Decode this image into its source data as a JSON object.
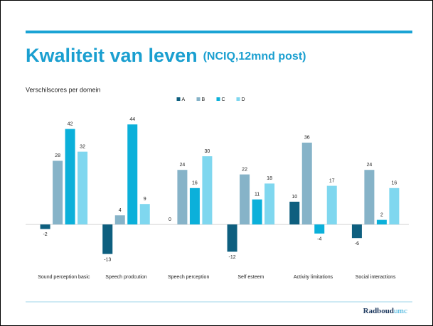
{
  "title": "Kwaliteit van leven",
  "title_suffix": "(NCIQ,12mnd post)",
  "logo": {
    "part1": "Radboud",
    "part2": "umc"
  },
  "chart_data": {
    "type": "bar",
    "subtitle": "Verschilscores per domein",
    "categories": [
      "Sound perception basic",
      "Speech prodcution",
      "Speech perception",
      "Self esteem",
      "Activity limitations",
      "Social interactions"
    ],
    "series": [
      {
        "name": "A",
        "color": "#0e5f7f",
        "values": [
          -2,
          -13,
          0,
          -12,
          10,
          -6
        ]
      },
      {
        "name": "B",
        "color": "#86b3c8",
        "values": [
          28,
          4,
          24,
          22,
          36,
          24
        ]
      },
      {
        "name": "C",
        "color": "#0bb0da",
        "values": [
          42,
          44,
          16,
          11,
          -4,
          2
        ]
      },
      {
        "name": "D",
        "color": "#7fd7ef",
        "values": [
          32,
          9,
          30,
          18,
          17,
          16
        ]
      }
    ],
    "ylim": [
      -20,
      50
    ],
    "legend": "top"
  }
}
